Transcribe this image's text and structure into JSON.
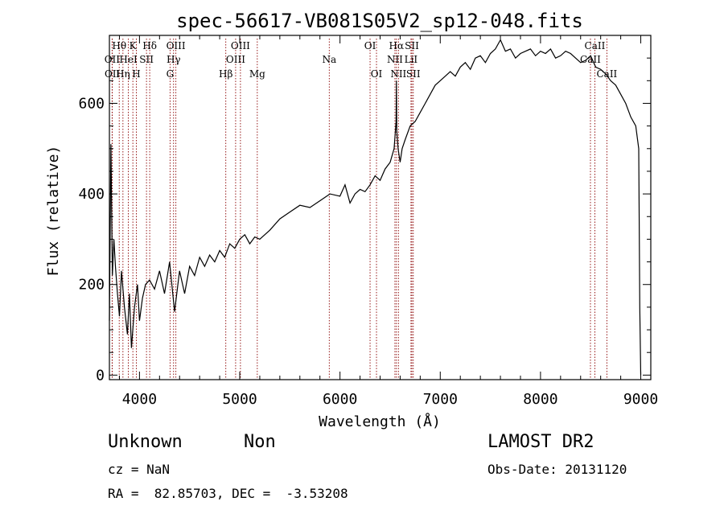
{
  "chart_data": {
    "type": "line",
    "title": "spec-56617-VB081S05V2_sp12-048.fits",
    "xlabel": "Wavelength (Å)",
    "ylabel": "Flux (relative)",
    "xlim": [
      3700,
      9100
    ],
    "ylim": [
      -10,
      750
    ],
    "xticks": [
      {
        "value": 4000,
        "label": "4000"
      },
      {
        "value": 5000,
        "label": "5000"
      },
      {
        "value": 6000,
        "label": "6000"
      },
      {
        "value": 7000,
        "label": "7000"
      },
      {
        "value": 8000,
        "label": "8000"
      },
      {
        "value": 9000,
        "label": "9000"
      }
    ],
    "yticks": [
      {
        "value": 0,
        "label": "0"
      },
      {
        "value": 200,
        "label": "200"
      },
      {
        "value": 400,
        "label": "400"
      },
      {
        "value": 600,
        "label": "600"
      }
    ],
    "series": [
      {
        "name": "flux",
        "x": [
          3700,
          3715,
          3730,
          3745,
          3760,
          3780,
          3800,
          3820,
          3850,
          3880,
          3900,
          3920,
          3950,
          3980,
          4000,
          4030,
          4060,
          4100,
          4150,
          4200,
          4250,
          4300,
          4350,
          4400,
          4450,
          4500,
          4550,
          4600,
          4650,
          4700,
          4750,
          4800,
          4850,
          4900,
          4950,
          5000,
          5050,
          5100,
          5150,
          5200,
          5300,
          5400,
          5500,
          5600,
          5700,
          5800,
          5900,
          6000,
          6050,
          6100,
          6150,
          6200,
          6250,
          6300,
          6350,
          6400,
          6450,
          6500,
          6540,
          6560,
          6563,
          6566,
          6580,
          6600,
          6620,
          6650,
          6700,
          6750,
          6800,
          6850,
          6900,
          6950,
          7000,
          7050,
          7100,
          7150,
          7200,
          7250,
          7300,
          7350,
          7400,
          7450,
          7500,
          7550,
          7600,
          7650,
          7700,
          7750,
          7800,
          7850,
          7900,
          7950,
          8000,
          8050,
          8100,
          8150,
          8200,
          8250,
          8300,
          8350,
          8400,
          8450,
          8500,
          8550,
          8600,
          8650,
          8700,
          8750,
          8800,
          8850,
          8900,
          8950,
          8980,
          8990,
          9000
        ],
        "y": [
          120,
          510,
          220,
          300,
          240,
          180,
          130,
          230,
          150,
          90,
          180,
          60,
          150,
          200,
          120,
          170,
          200,
          210,
          190,
          230,
          180,
          250,
          140,
          230,
          180,
          240,
          220,
          260,
          240,
          265,
          250,
          275,
          260,
          290,
          280,
          300,
          310,
          290,
          305,
          300,
          320,
          345,
          360,
          375,
          370,
          385,
          400,
          395,
          420,
          380,
          400,
          410,
          405,
          420,
          440,
          430,
          455,
          470,
          500,
          560,
          650,
          540,
          500,
          470,
          500,
          520,
          550,
          560,
          580,
          600,
          620,
          640,
          650,
          660,
          670,
          660,
          680,
          690,
          675,
          700,
          705,
          690,
          710,
          720,
          740,
          715,
          720,
          700,
          710,
          715,
          720,
          705,
          715,
          710,
          720,
          700,
          705,
          715,
          710,
          700,
          690,
          695,
          705,
          680,
          675,
          665,
          650,
          640,
          620,
          600,
          570,
          550,
          500,
          150,
          0
        ]
      }
    ],
    "spectral_lines": [
      {
        "label": "Hθ",
        "wavelength": 3798,
        "row": 0
      },
      {
        "label": "OII",
        "wavelength": 3727,
        "row": 1
      },
      {
        "label": "OII",
        "wavelength": 3729,
        "row": 2
      },
      {
        "label": "K",
        "wavelength": 3934,
        "row": 0
      },
      {
        "label": "HeI",
        "wavelength": 3889,
        "row": 1
      },
      {
        "label": "Hη",
        "wavelength": 3835,
        "row": 2
      },
      {
        "label": "Hδ",
        "wavelength": 4102,
        "row": 0
      },
      {
        "label": "SII",
        "wavelength": 4070,
        "row": 1
      },
      {
        "label": "H",
        "wavelength": 3969,
        "row": 2
      },
      {
        "label": "OIII",
        "wavelength": 4363,
        "row": 0
      },
      {
        "label": "Hγ",
        "wavelength": 4340,
        "row": 1
      },
      {
        "label": "G",
        "wavelength": 4305,
        "row": 2
      },
      {
        "label": "OIII",
        "wavelength": 5007,
        "row": 0
      },
      {
        "label": "OIII",
        "wavelength": 4959,
        "row": 1
      },
      {
        "label": "Hβ",
        "wavelength": 4861,
        "row": 2
      },
      {
        "label": "Mg",
        "wavelength": 5175,
        "row": 2
      },
      {
        "label": "Na",
        "wavelength": 5893,
        "row": 1
      },
      {
        "label": "OI",
        "wavelength": 6300,
        "row": 0
      },
      {
        "label": "OI",
        "wavelength": 6364,
        "row": 2
      },
      {
        "label": "Hα",
        "wavelength": 6563,
        "row": 0
      },
      {
        "label": "SII",
        "wavelength": 6717,
        "row": 0
      },
      {
        "label": "NII",
        "wavelength": 6548,
        "row": 1
      },
      {
        "label": "LiI",
        "wavelength": 6708,
        "row": 1
      },
      {
        "label": "NII",
        "wavelength": 6583,
        "row": 2
      },
      {
        "label": "SII",
        "wavelength": 6731,
        "row": 2
      },
      {
        "label": "CaII",
        "wavelength": 8542,
        "row": 0
      },
      {
        "label": "CaII",
        "wavelength": 8498,
        "row": 1
      },
      {
        "label": "CaII",
        "wavelength": 8662,
        "row": 2
      }
    ]
  },
  "info": {
    "obj_class": "Unknown",
    "obj_subclass": "Non",
    "survey": "LAMOST DR2",
    "cz": "cz = NaN",
    "obs_date": "Obs-Date: 20131120",
    "radec": "RA =  82.85703, DEC =  -3.53208"
  },
  "colors": {
    "line": "#000000",
    "marker_line": "#8b0000",
    "background": "#ffffff"
  }
}
